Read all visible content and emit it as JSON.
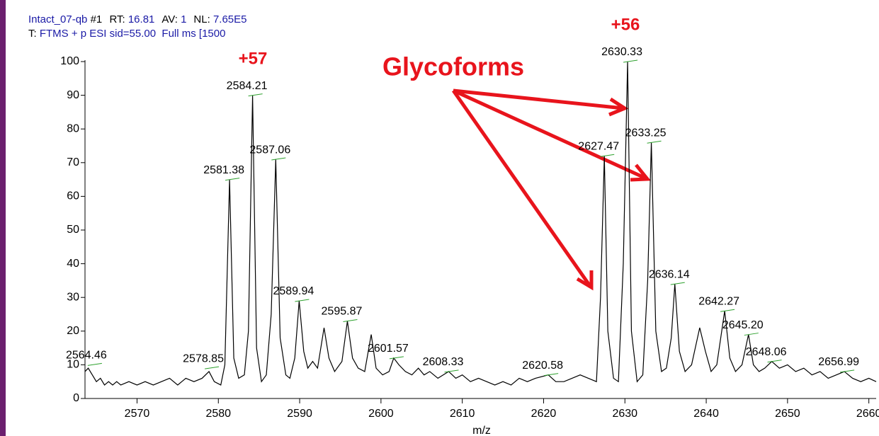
{
  "chart_data": {
    "type": "line",
    "header": {
      "file": "Intact_07-qb",
      "scan": "#1",
      "rt_key": "RT:",
      "rt": "16.81",
      "av_key": "AV:",
      "av": "1",
      "nl_key": "NL:",
      "nl": "7.65E5",
      "t_key": "T:",
      "filter": "FTMS + p ESI sid=55.00  Full ms [1500"
    },
    "xlabel": "m/z",
    "annotations": [
      "+57",
      "+56",
      "Glycoforms"
    ],
    "xlim": [
      2563.6,
      2660.9
    ],
    "ylim": [
      0,
      100
    ],
    "xticks": [
      2570,
      2580,
      2590,
      2600,
      2610,
      2620,
      2630,
      2640,
      2650,
      2660
    ],
    "yticks": [
      0,
      10,
      20,
      30,
      40,
      50,
      60,
      70,
      80,
      90,
      100
    ],
    "color": "#000000",
    "x": [
      2563.6,
      2564.0,
      2564.5,
      2565.0,
      2565.5,
      2566,
      2566.5,
      2567,
      2567.5,
      2568,
      2569,
      2570,
      2571,
      2572,
      2573,
      2574,
      2575,
      2576,
      2577,
      2578,
      2578.85,
      2579.5,
      2580.3,
      2580.8,
      2581.38,
      2581.9,
      2582.5,
      2583.2,
      2583.7,
      2584.21,
      2584.7,
      2585.3,
      2585.9,
      2586.5,
      2587.06,
      2587.6,
      2588.3,
      2588.8,
      2589.4,
      2589.94,
      2590.5,
      2591,
      2591.6,
      2592.2,
      2593,
      2593.6,
      2594.3,
      2595.2,
      2595.87,
      2596.5,
      2597.2,
      2598,
      2598.8,
      2599.4,
      2600.2,
      2601,
      2601.57,
      2602.2,
      2603,
      2603.8,
      2604.6,
      2605.3,
      2606,
      2607,
      2608.33,
      2609.2,
      2610,
      2611,
      2612,
      2613,
      2614,
      2615,
      2616,
      2617,
      2618,
      2619,
      2620.58,
      2621.5,
      2622.5,
      2623.5,
      2624.5,
      2625.5,
      2626.5,
      2627,
      2627.47,
      2627.9,
      2628.6,
      2629.2,
      2629.8,
      2630.33,
      2630.8,
      2631.5,
      2632.2,
      2632.8,
      2633.25,
      2633.8,
      2634.5,
      2635.1,
      2635.7,
      2636.14,
      2636.7,
      2637.4,
      2638.2,
      2639.2,
      2639.9,
      2640.6,
      2641.3,
      2642.27,
      2642.9,
      2643.6,
      2644.4,
      2645.2,
      2645.8,
      2646.5,
      2647.2,
      2648.06,
      2649,
      2650,
      2651,
      2652,
      2653,
      2654,
      2655,
      2656,
      2656.99,
      2658,
      2659,
      2660,
      2660.9
    ],
    "values": [
      8,
      9,
      7,
      5,
      6,
      4,
      5,
      4,
      5,
      4,
      5,
      4,
      5,
      4,
      5,
      6,
      4,
      6,
      5,
      6,
      8,
      5,
      4,
      10,
      65,
      12,
      6,
      7,
      20,
      90,
      15,
      5,
      7,
      25,
      71,
      18,
      7,
      6,
      12,
      29,
      14,
      9,
      11,
      9,
      21,
      12,
      8,
      11,
      23,
      12,
      9,
      8,
      19,
      9,
      7,
      8,
      12,
      10,
      8,
      7,
      9,
      7,
      8,
      6,
      8,
      6,
      7,
      5,
      6,
      5,
      4,
      5,
      4,
      6,
      5,
      6,
      7,
      5,
      5,
      6,
      7,
      6,
      5,
      30,
      72,
      20,
      6,
      5,
      40,
      100,
      20,
      5,
      7,
      35,
      76,
      20,
      8,
      9,
      18,
      34,
      14,
      8,
      10,
      21,
      14,
      8,
      10,
      26,
      12,
      8,
      10,
      19,
      10,
      8,
      9,
      11,
      9,
      10,
      8,
      9,
      7,
      8,
      6,
      7,
      8,
      6,
      5,
      6,
      5
    ],
    "peaks": {
      "mz": [
        2564.46,
        2578.85,
        2581.38,
        2584.21,
        2587.06,
        2589.94,
        2595.87,
        2601.57,
        2608.33,
        2620.58,
        2627.47,
        2630.33,
        2633.25,
        2636.14,
        2642.27,
        2645.2,
        2648.06,
        2656.99
      ],
      "intensity": [
        10,
        9,
        65,
        90,
        71,
        29,
        23,
        12,
        8,
        7,
        72,
        100,
        76,
        34,
        26,
        19,
        11,
        8
      ],
      "value_labels": [
        "2564.46",
        "2578.85",
        "2581.38",
        "2584.21",
        "2587.06",
        "2589.94",
        "2595.87",
        "2601.57",
        "2608.33",
        "2620.58",
        "2627.47",
        "2630.33",
        "2633.25",
        "2636.14",
        "2642.27",
        "2645.20",
        "2648.06",
        "2656.99"
      ]
    }
  }
}
